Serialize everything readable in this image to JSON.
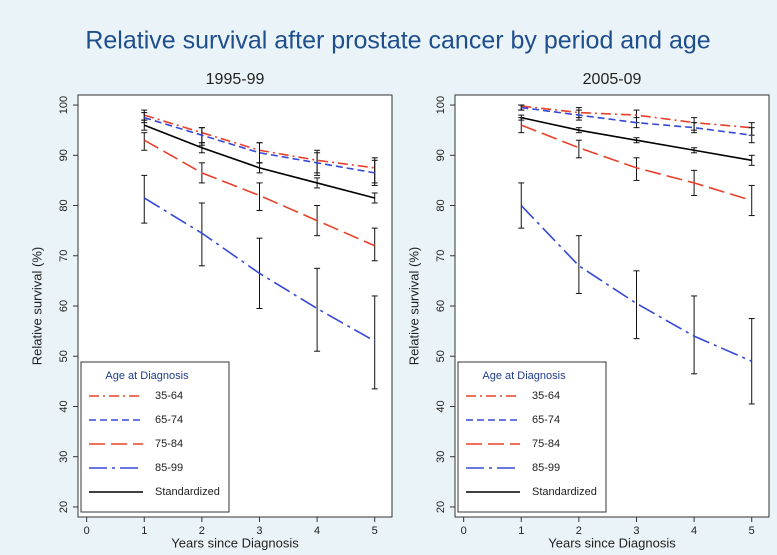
{
  "title": "Relative survival after prostate cancer by period and age",
  "chart_data": [
    {
      "type": "line",
      "title": "1995-99",
      "x_label": "Years since Diagnosis",
      "y_label": "Relative survival (%)",
      "x": [
        1,
        2,
        3,
        4,
        5
      ],
      "xlim": [
        -0.15,
        5.3
      ],
      "xticks": [
        0,
        1,
        2,
        3,
        4,
        5
      ],
      "ylim": [
        18,
        102
      ],
      "yticks": [
        20,
        30,
        40,
        50,
        60,
        70,
        80,
        90,
        100
      ],
      "legend": "lower left",
      "legend_title": "Age at Diagnosis",
      "series": [
        {
          "name": "35-64",
          "color": "#e8402a",
          "dash": "dash-dot",
          "values": [
            98,
            94.5,
            91,
            89,
            87.5
          ],
          "lower": [
            97,
            92,
            88.5,
            86.5,
            84.5
          ],
          "upper": [
            99,
            95.5,
            92.5,
            91,
            89.5
          ]
        },
        {
          "name": "65-74",
          "color": "#3548d6",
          "dash": "dash",
          "values": [
            97.5,
            94,
            90.5,
            88.5,
            86.5
          ],
          "lower": [
            96.5,
            92.5,
            88.5,
            86,
            84
          ],
          "upper": [
            98.5,
            95.5,
            92.5,
            90.5,
            89
          ]
        },
        {
          "name": "75-84",
          "color": "#e8402a",
          "dash": "long-dash",
          "values": [
            93,
            86.5,
            82,
            77,
            72
          ],
          "lower": [
            91,
            84.5,
            79,
            74,
            69
          ],
          "upper": [
            94.5,
            88.5,
            84.5,
            80,
            75.5
          ]
        },
        {
          "name": "85-99",
          "color": "#3548d6",
          "dash": "long-dash-dot",
          "values": [
            81.5,
            74.5,
            66.5,
            59.5,
            53
          ],
          "lower": [
            76.5,
            68,
            59.5,
            51,
            43.5
          ],
          "upper": [
            86,
            80.5,
            73.5,
            67.5,
            62
          ]
        },
        {
          "name": "Standardized",
          "color": "#000000",
          "dash": "solid",
          "values": [
            96,
            91.5,
            87.5,
            84.5,
            81.5
          ],
          "lower": [
            95,
            90.5,
            86.5,
            83.5,
            80.5
          ],
          "upper": [
            97,
            92.5,
            88.5,
            85.5,
            82.5
          ]
        }
      ]
    },
    {
      "type": "line",
      "title": "2005-09",
      "x_label": "Years since Diagnosis",
      "y_label": "Relative survival (%)",
      "x": [
        1,
        2,
        3,
        4,
        5
      ],
      "xlim": [
        -0.15,
        5.3
      ],
      "xticks": [
        0,
        1,
        2,
        3,
        4,
        5
      ],
      "ylim": [
        18,
        102
      ],
      "yticks": [
        20,
        30,
        40,
        50,
        60,
        70,
        80,
        90,
        100
      ],
      "legend": "lower left",
      "legend_title": "Age at Diagnosis",
      "series": [
        {
          "name": "35-64",
          "color": "#e8402a",
          "dash": "dash-dot",
          "values": [
            99.8,
            98.5,
            98,
            96.5,
            95.5
          ],
          "lower": [
            99,
            97.5,
            96.5,
            95,
            94
          ],
          "upper": [
            100,
            99.5,
            99,
            97.5,
            96.5
          ]
        },
        {
          "name": "65-74",
          "color": "#3548d6",
          "dash": "dash",
          "values": [
            99.5,
            98,
            96.5,
            95.5,
            94
          ],
          "lower": [
            99,
            97,
            95.5,
            94.5,
            92.5
          ],
          "upper": [
            100,
            99,
            97.5,
            96.5,
            95.5
          ]
        },
        {
          "name": "75-84",
          "color": "#e8402a",
          "dash": "long-dash",
          "values": [
            96,
            91.5,
            87.5,
            84.5,
            81
          ],
          "lower": [
            94.5,
            89.5,
            85,
            82,
            78
          ],
          "upper": [
            97.5,
            93,
            89.5,
            87,
            84
          ]
        },
        {
          "name": "85-99",
          "color": "#3548d6",
          "dash": "long-dash-dot",
          "values": [
            80,
            68,
            60.5,
            54,
            49
          ],
          "lower": [
            75.5,
            62.5,
            53.5,
            46.5,
            40.5
          ],
          "upper": [
            84.5,
            74,
            67,
            62,
            57.5
          ]
        },
        {
          "name": "Standardized",
          "color": "#000000",
          "dash": "solid",
          "values": [
            97.5,
            95,
            93,
            91,
            89
          ],
          "lower": [
            97,
            94.5,
            92.5,
            90.5,
            88
          ],
          "upper": [
            98,
            95.5,
            93.5,
            91.5,
            90
          ]
        }
      ]
    }
  ]
}
